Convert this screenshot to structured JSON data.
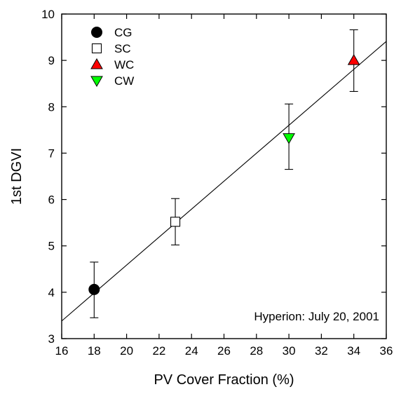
{
  "chart_data": {
    "type": "scatter",
    "title": "",
    "xlabel": "PV Cover Fraction (%)",
    "ylabel": "1st DGVI",
    "xlim": [
      16,
      36
    ],
    "ylim": [
      3,
      10
    ],
    "x_ticks": [
      16,
      18,
      20,
      22,
      24,
      26,
      28,
      30,
      32,
      34,
      36
    ],
    "y_ticks": [
      3,
      4,
      5,
      6,
      7,
      8,
      9,
      10
    ],
    "grid": false,
    "legend_position": "top-left",
    "annotation": "Hyperion: July 20, 2001",
    "series": [
      {
        "name": "CG",
        "marker": "circle",
        "color": "#000000",
        "x": 18,
        "y": 4.06,
        "err_low": 3.45,
        "err_high": 4.65
      },
      {
        "name": "SC",
        "marker": "square-open",
        "color": "#ffffff",
        "x": 23,
        "y": 5.52,
        "err_low": 5.02,
        "err_high": 6.02
      },
      {
        "name": "WC",
        "marker": "triangle-up",
        "color": "#ff0000",
        "x": 34,
        "y": 9.0,
        "err_low": 8.33,
        "err_high": 9.66
      },
      {
        "name": "CW",
        "marker": "triangle-down",
        "color": "#00ff00",
        "x": 30,
        "y": 7.33,
        "err_low": 6.65,
        "err_high": 8.06
      }
    ],
    "fit_line": {
      "x": [
        16,
        36
      ],
      "y": [
        3.38,
        9.41
      ]
    }
  }
}
